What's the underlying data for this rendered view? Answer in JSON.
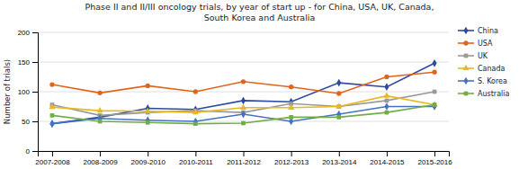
{
  "chart_data": {
    "type": "line",
    "title": "Phase II and II/III oncology trials, by year of start up - for China, USA, UK, Canada,\nSouth Korea and Australia",
    "ylabel": "Number of trials)",
    "categories": [
      "2007-2008",
      "2008-2009",
      "2009-2010",
      "2010-2011",
      "2011-2012",
      "2012-2013",
      "2013-2014",
      "2014-2015",
      "2015-2016"
    ],
    "series": [
      {
        "name": "China",
        "color": "#2E4A9E",
        "marker": "diamond",
        "values": [
          46,
          57,
          72,
          70,
          85,
          83,
          115,
          108,
          148
        ]
      },
      {
        "name": "USA",
        "color": "#E2641A",
        "marker": "circle",
        "values": [
          112,
          98,
          110,
          100,
          117,
          108,
          97,
          125,
          133
        ]
      },
      {
        "name": "UK",
        "color": "#999999",
        "marker": "square",
        "values": [
          78,
          60,
          65,
          68,
          65,
          80,
          75,
          85,
          100
        ]
      },
      {
        "name": "Canada",
        "color": "#E8B820",
        "marker": "triangle",
        "values": [
          74,
          68,
          67,
          65,
          73,
          73,
          75,
          93,
          78
        ]
      },
      {
        "name": "S. Korea",
        "color": "#4472C4",
        "marker": "diamond",
        "values": [
          46,
          55,
          52,
          50,
          62,
          50,
          62,
          75,
          75
        ]
      },
      {
        "name": "Australia",
        "color": "#70AD47",
        "marker": "square",
        "values": [
          60,
          50,
          48,
          46,
          47,
          57,
          57,
          65,
          78
        ]
      }
    ],
    "ylim": [
      0,
      200
    ],
    "yticks": [
      0,
      50,
      100,
      150,
      200
    ],
    "grid": true,
    "legend": "right"
  }
}
